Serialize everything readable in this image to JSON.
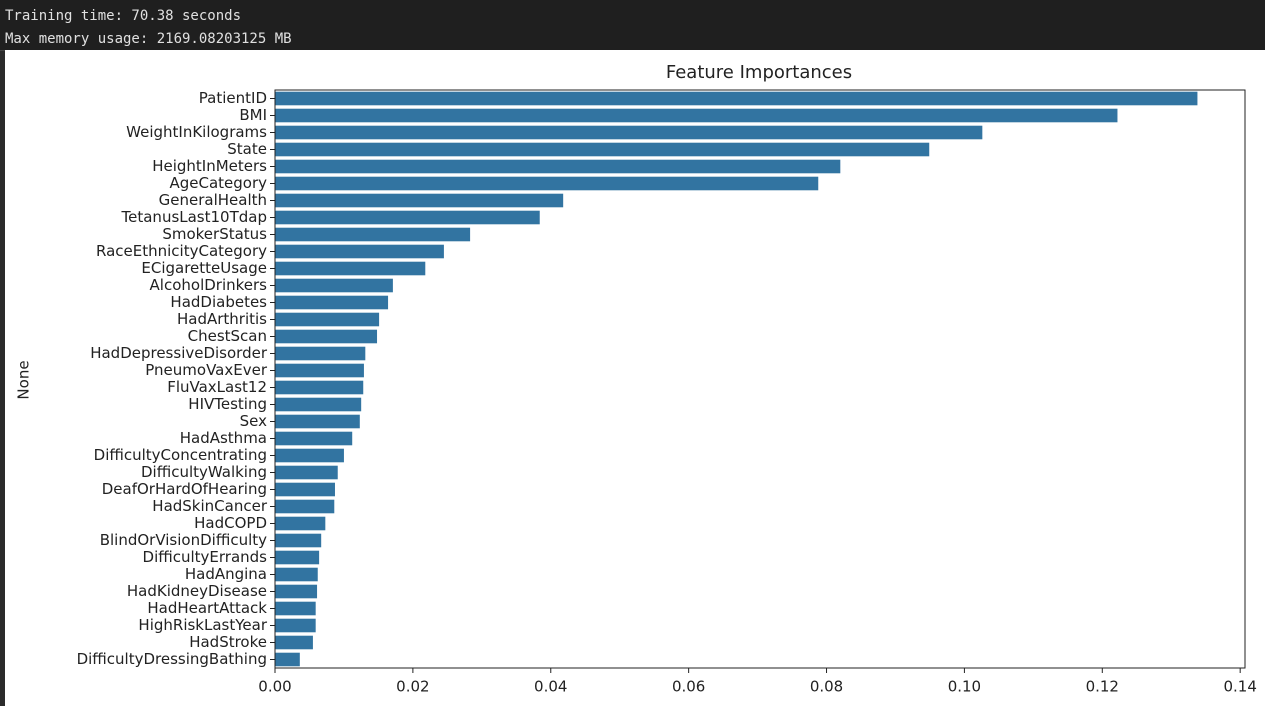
{
  "console": {
    "lines": [
      "Training time: 70.38 seconds",
      "Max memory usage: 2169.08203125 MB"
    ]
  },
  "chart_data": {
    "type": "barh",
    "title": "Feature Importances",
    "ylabel": "None",
    "categories": [
      "PatientID",
      "BMI",
      "WeightInKilograms",
      "State",
      "HeightInMeters",
      "AgeCategory",
      "GeneralHealth",
      "TetanusLast10Tdap",
      "SmokerStatus",
      "RaceEthnicityCategory",
      "ECigaretteUsage",
      "AlcoholDrinkers",
      "HadDiabetes",
      "HadArthritis",
      "ChestScan",
      "HadDepressiveDisorder",
      "PneumoVaxEver",
      "FluVaxLast12",
      "HIVTesting",
      "Sex",
      "HadAsthma",
      "DifficultyConcentrating",
      "DifficultyWalking",
      "DeafOrHardOfHearing",
      "HadSkinCancer",
      "HadCOPD",
      "BlindOrVisionDifficulty",
      "DifficultyErrands",
      "HadAngina",
      "HadKidneyDisease",
      "HadHeartAttack",
      "HighRiskLastYear",
      "HadStroke",
      "DifficultyDressingBathing"
    ],
    "values": [
      0.1338,
      0.1222,
      0.1026,
      0.0949,
      0.082,
      0.0788,
      0.0418,
      0.0384,
      0.0283,
      0.0245,
      0.0218,
      0.0171,
      0.0164,
      0.0151,
      0.0148,
      0.0131,
      0.0129,
      0.0128,
      0.0125,
      0.0123,
      0.0112,
      0.01,
      0.0091,
      0.0087,
      0.0086,
      0.0073,
      0.0067,
      0.0064,
      0.0062,
      0.0061,
      0.0059,
      0.0059,
      0.0055,
      0.0036
    ],
    "color": "#3274a1",
    "xlim": [
      0,
      0.1407
    ],
    "xticks": [
      {
        "value": 0,
        "label": "0.00"
      },
      0.02,
      0.04,
      0.06,
      0.08,
      {
        "value": 0.1,
        "label": "0.10"
      },
      0.12,
      0.14
    ]
  }
}
